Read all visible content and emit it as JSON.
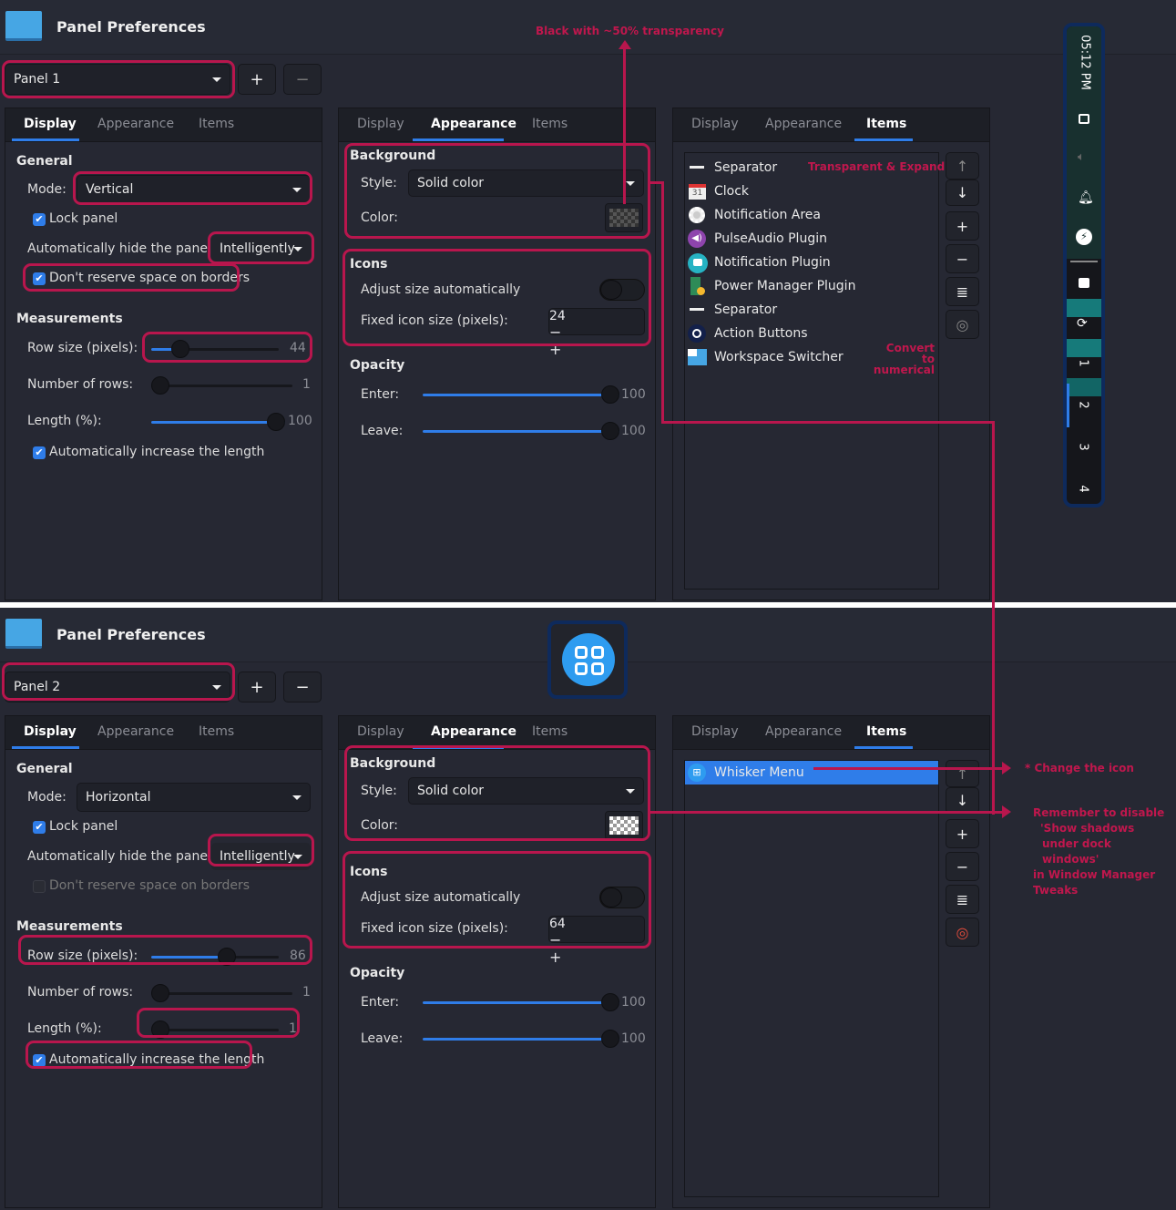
{
  "colors": {
    "accent": "#2f7de9",
    "annotation": "#b8164d",
    "background": "#262833"
  },
  "windows": [
    {
      "title": "Panel Preferences",
      "panel_select": "Panel 1",
      "add_label": "+",
      "remove_label": "−",
      "tabs": [
        "Display",
        "Appearance",
        "Items"
      ],
      "display": {
        "general": "General",
        "mode_label": "Mode:",
        "mode": "Vertical",
        "lock_panel": "Lock panel",
        "lock_checked": true,
        "autohide_label": "Automatically hide the panel:",
        "autohide": "Intelligently",
        "no_reserve": "Don't reserve space on borders",
        "no_reserve_checked": true,
        "no_reserve_enabled": true,
        "measurements": "Measurements",
        "row_size_label": "Row size (pixels):",
        "row_size": "44",
        "row_size_frac": 0.18,
        "rows_label": "Number of rows:",
        "rows": "1",
        "rows_frac": 0,
        "length_label": "Length (%):",
        "length": "100",
        "length_frac": 1,
        "auto_length": "Automatically increase the length",
        "auto_length_checked": true
      },
      "appearance": {
        "background": "Background",
        "style_label": "Style:",
        "style": "Solid color",
        "color_label": "Color:",
        "swatch": "dark-checker",
        "icons": "Icons",
        "adjust": "Adjust size automatically",
        "adjust_on": false,
        "fixed_label": "Fixed icon size (pixels):",
        "fixed": "24",
        "minus": "−",
        "plus": "+",
        "opacity": "Opacity",
        "enter_label": "Enter:",
        "enter": "100",
        "leave_label": "Leave:",
        "leave": "100"
      },
      "items": [
        {
          "label": "Separator",
          "icon": "separator-icon"
        },
        {
          "label": "Clock",
          "icon": "calendar-icon"
        },
        {
          "label": "Notification Area",
          "icon": "gear-icon"
        },
        {
          "label": "PulseAudio Plugin",
          "icon": "speaker-icon"
        },
        {
          "label": "Notification Plugin",
          "icon": "chat-bubble-icon"
        },
        {
          "label": "Power Manager Plugin",
          "icon": "battery-icon"
        },
        {
          "label": "Separator",
          "icon": "separator-icon"
        },
        {
          "label": "Action Buttons",
          "icon": "action-icon"
        },
        {
          "label": "Workspace Switcher",
          "icon": "workspace-icon"
        }
      ],
      "side_buttons": [
        "↑",
        "↓",
        "+",
        "−",
        "≣",
        "◎"
      ]
    },
    {
      "title": "Panel Preferences",
      "panel_select": "Panel 2",
      "add_label": "+",
      "remove_label": "−",
      "tabs": [
        "Display",
        "Appearance",
        "Items"
      ],
      "display": {
        "general": "General",
        "mode_label": "Mode:",
        "mode": "Horizontal",
        "lock_panel": "Lock panel",
        "lock_checked": true,
        "autohide_label": "Automatically hide the panel:",
        "autohide": "Intelligently",
        "no_reserve": "Don't reserve space on borders",
        "no_reserve_checked": false,
        "no_reserve_enabled": false,
        "measurements": "Measurements",
        "row_size_label": "Row size (pixels):",
        "row_size": "86",
        "row_size_frac": 0.61,
        "rows_label": "Number of rows:",
        "rows": "1",
        "rows_frac": 0,
        "length_label": "Length (%):",
        "length": "1",
        "length_frac": 0,
        "auto_length": "Automatically increase the length",
        "auto_length_checked": true
      },
      "appearance": {
        "background": "Background",
        "style_label": "Style:",
        "style": "Solid color",
        "color_label": "Color:",
        "swatch": "light-checker",
        "icons": "Icons",
        "adjust": "Adjust size automatically",
        "adjust_on": false,
        "fixed_label": "Fixed icon size (pixels):",
        "fixed": "64",
        "minus": "−",
        "plus": "+",
        "opacity": "Opacity",
        "enter_label": "Enter:",
        "enter": "100",
        "leave_label": "Leave:",
        "leave": "100"
      },
      "items": [
        {
          "label": "Whisker Menu",
          "icon": "whisker-menu-icon",
          "selected": true
        }
      ],
      "side_buttons": [
        "↑",
        "↓",
        "+",
        "−",
        "≣",
        "◎"
      ]
    }
  ],
  "vertical_panel": {
    "clock": "05:12 PM",
    "workspaces": [
      "1",
      "2",
      "3",
      "4"
    ],
    "active_workspace": "2"
  },
  "annotations": {
    "black_transparency": "Black with ~50% transparency",
    "transparent_expand": "Transparent & Expand",
    "convert_numerical": "Convert to numerical",
    "change_icon": "* Change the icon",
    "remember": [
      "Remember to disable",
      "'Show shadows",
      "under dock",
      "windows'",
      "in Window Manager",
      "Tweaks"
    ]
  }
}
